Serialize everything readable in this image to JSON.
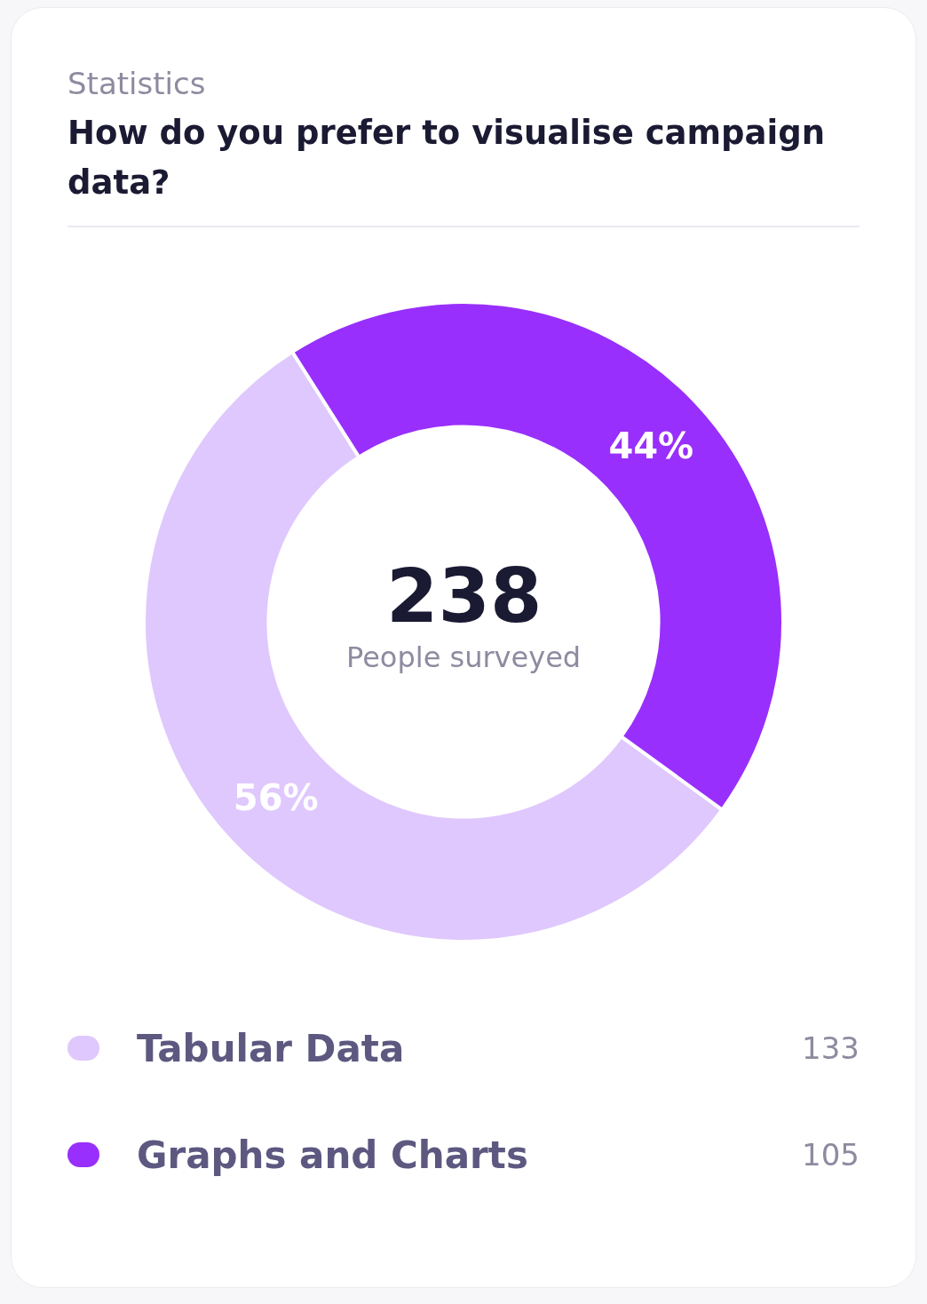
{
  "chart_data": {
    "type": "donut",
    "subtitle": "Statistics",
    "title": "How do you prefer to visualise campaign data?",
    "categories": [
      "Tabular Data",
      "Graphs and Charts"
    ],
    "values": [
      56,
      44
    ],
    "colors": [
      "#dfc8fd",
      "#982ffc"
    ],
    "value_labels": [
      "56%",
      "44%"
    ],
    "annotations": [
      "238",
      "People surveyed",
      "133",
      "105"
    ],
    "legend": "bottom"
  }
}
